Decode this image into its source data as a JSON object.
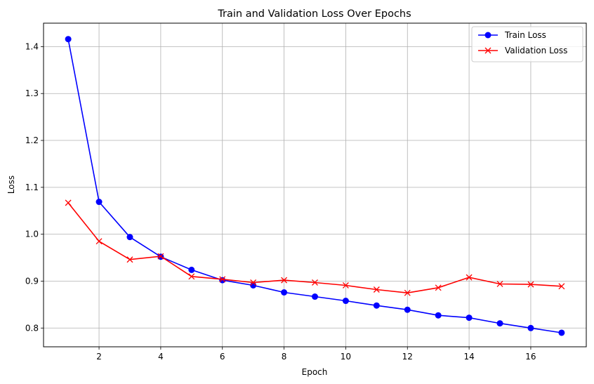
{
  "chart_data": {
    "type": "line",
    "title": "Train and Validation Loss Over Epochs",
    "xlabel": "Epoch",
    "ylabel": "Loss",
    "xlim": [
      0.2,
      17.8
    ],
    "ylim": [
      0.76,
      1.45
    ],
    "xticks": [
      2,
      4,
      6,
      8,
      10,
      12,
      14,
      16
    ],
    "yticks": [
      0.8,
      0.9,
      1.0,
      1.1,
      1.2,
      1.3,
      1.4
    ],
    "ytick_labels": [
      "0.8",
      "0.9",
      "1.0",
      "1.1",
      "1.2",
      "1.3",
      "1.4"
    ],
    "grid": true,
    "legend_position": "top-right",
    "x": [
      1,
      2,
      3,
      4,
      5,
      6,
      7,
      8,
      9,
      10,
      11,
      12,
      13,
      14,
      15,
      16,
      17
    ],
    "series": [
      {
        "name": "Train Loss",
        "color": "#0000ff",
        "marker": "circle",
        "values": [
          1.416,
          1.069,
          0.994,
          0.952,
          0.924,
          0.902,
          0.891,
          0.876,
          0.867,
          0.858,
          0.848,
          0.839,
          0.827,
          0.822,
          0.81,
          0.8,
          0.79
        ]
      },
      {
        "name": "Validation Loss",
        "color": "#ff0000",
        "marker": "x",
        "values": [
          1.067,
          0.985,
          0.946,
          0.953,
          0.91,
          0.904,
          0.897,
          0.902,
          0.897,
          0.891,
          0.882,
          0.875,
          0.886,
          0.908,
          0.894,
          0.893,
          0.889
        ]
      }
    ]
  }
}
